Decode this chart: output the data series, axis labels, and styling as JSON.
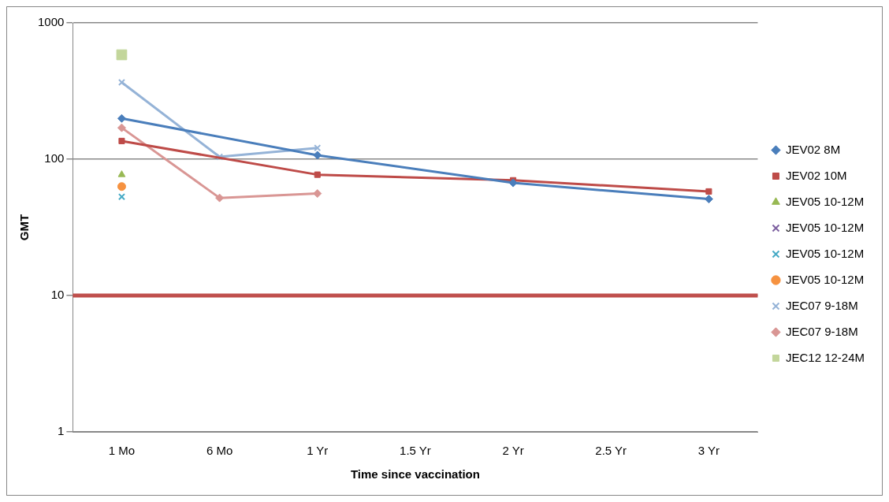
{
  "chart_data": {
    "type": "line",
    "xlabel": "Time since vaccination",
    "ylabel": "GMT",
    "categories": [
      "1 Mo",
      "6 Mo",
      "1 Yr",
      "1.5 Yr",
      "2 Yr",
      "2.5 Yr",
      "3 Yr"
    ],
    "log": "y",
    "ylim": [
      1,
      1000
    ],
    "yticks": [
      1,
      10,
      100,
      1000
    ],
    "grid": "y",
    "legend": "right",
    "line_style": "solid",
    "series": [
      {
        "name": "JEV02 8M",
        "color": "#4a7ebb",
        "marker": "diamond",
        "values": [
          199,
          null,
          107,
          null,
          67,
          null,
          51
        ]
      },
      {
        "name": "JEV02 10M",
        "color": "#be4b48",
        "marker": "square",
        "values": [
          136,
          null,
          77,
          null,
          70,
          null,
          58
        ]
      },
      {
        "name": "JEV05 10-12M",
        "color": "#98b954",
        "marker": "triangle",
        "values": [
          77,
          null,
          null,
          null,
          null,
          null,
          null
        ]
      },
      {
        "name": "JEV05 10-12M",
        "color": "#7d60a0",
        "marker": "cross",
        "values": [
          null,
          null,
          null,
          null,
          null,
          null,
          null
        ]
      },
      {
        "name": "JEV05 10-12M",
        "color": "#46aac5",
        "marker": "cross",
        "values": [
          53,
          null,
          null,
          null,
          null,
          null,
          null
        ]
      },
      {
        "name": "JEV05 10-12M",
        "color": "#f69240",
        "marker": "circle",
        "values": [
          63,
          null,
          null,
          null,
          null,
          null,
          null
        ]
      },
      {
        "name": "JEC07 9-18M",
        "color": "#95b3d7",
        "marker": "cross",
        "values": [
          366,
          104,
          121,
          null,
          null,
          null,
          null
        ]
      },
      {
        "name": "JEC07 9-18M",
        "color": "#d99694",
        "marker": "diamond",
        "values": [
          170,
          52,
          56,
          null,
          null,
          null,
          null
        ]
      },
      {
        "name": "JEC12 12-24M",
        "color": "#c3d69b",
        "marker": "square",
        "values": [
          583,
          null,
          null,
          null,
          null,
          null,
          null
        ]
      }
    ],
    "ref_lines": [
      {
        "axis": "y",
        "value": 10,
        "color": "#c0504d"
      }
    ]
  }
}
